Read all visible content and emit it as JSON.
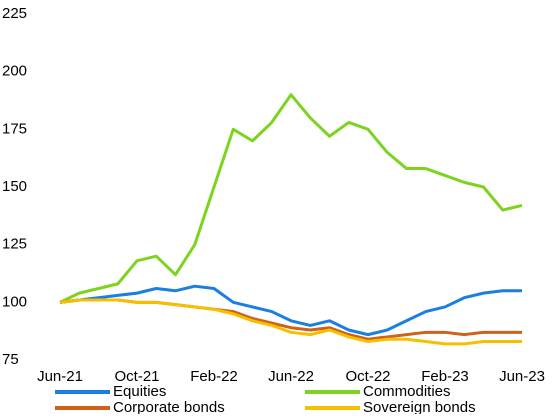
{
  "chart_data": {
    "type": "line",
    "categories": [
      "Jun-21",
      null,
      null,
      null,
      "Oct-21",
      null,
      null,
      null,
      "Feb-22",
      null,
      null,
      null,
      "Jun-22",
      null,
      null,
      null,
      "Oct-22",
      null,
      null,
      null,
      "Feb-23",
      null,
      null,
      null,
      "Jun-23"
    ],
    "series": [
      {
        "name": "Equities",
        "color": "#1a7fe0",
        "values": [
          100,
          101,
          102,
          103,
          104,
          106,
          105,
          107,
          106,
          100,
          98,
          96,
          92,
          90,
          92,
          88,
          86,
          88,
          92,
          96,
          98,
          102,
          104,
          105,
          105
        ]
      },
      {
        "name": "Commodities",
        "color": "#7ed321",
        "values": [
          100,
          104,
          106,
          108,
          118,
          120,
          112,
          125,
          150,
          175,
          170,
          178,
          190,
          180,
          172,
          178,
          175,
          165,
          158,
          158,
          155,
          152,
          150,
          140,
          142
        ]
      },
      {
        "name": "Corporate bonds",
        "color": "#d0611c",
        "values": [
          100,
          101,
          101,
          101,
          100,
          100,
          99,
          98,
          97,
          96,
          93,
          91,
          89,
          88,
          89,
          86,
          84,
          85,
          86,
          87,
          87,
          86,
          87,
          87,
          87
        ]
      },
      {
        "name": "Sovereign bonds",
        "color": "#f5c000",
        "values": [
          100,
          101,
          101,
          101,
          100,
          100,
          99,
          98,
          97,
          95,
          92,
          90,
          87,
          86,
          88,
          85,
          83,
          84,
          84,
          83,
          82,
          82,
          83,
          83,
          83
        ]
      }
    ],
    "ylim": [
      75,
      225
    ],
    "yticks": [
      75,
      100,
      125,
      150,
      175,
      200,
      225
    ],
    "grid": false
  }
}
